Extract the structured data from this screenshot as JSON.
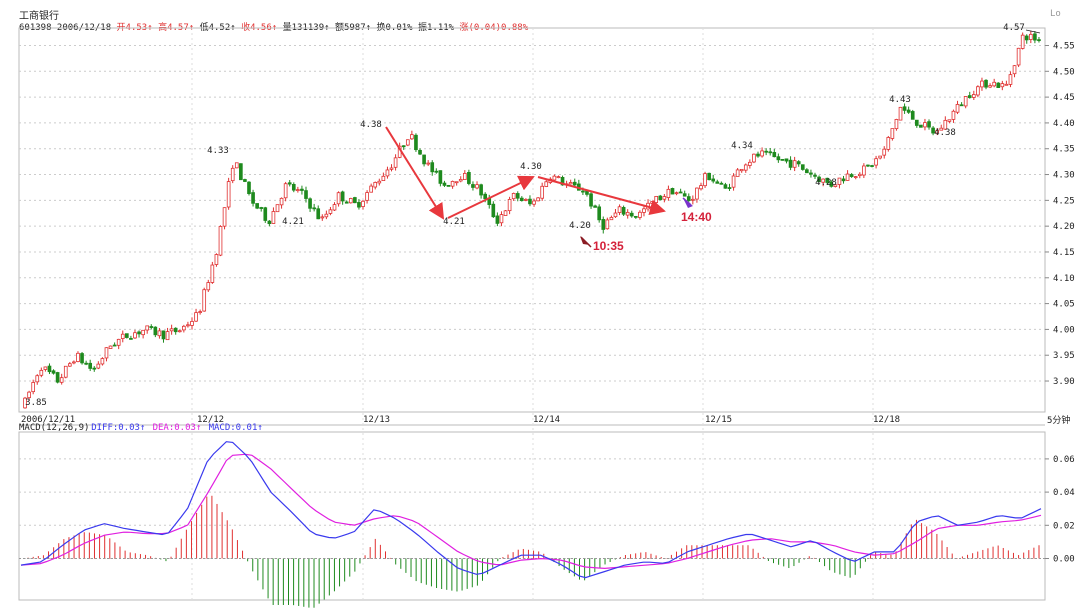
{
  "header": {
    "stock_name": "工商银行",
    "info_line": [
      {
        "text": "601398 2006/12/18 ",
        "color": "#222222"
      },
      {
        "text": "开4.53↑",
        "color": "#e03030"
      },
      {
        "text": "高4.57↑",
        "color": "#e03030"
      },
      {
        "text": "低4.52↑",
        "color": "#222222"
      },
      {
        "text": "收4.56↑",
        "color": "#e03030"
      },
      {
        "text": "量131139↑",
        "color": "#222222"
      },
      {
        "text": "额5987↑",
        "color": "#222222"
      },
      {
        "text": "换0.01%",
        "color": "#222222"
      },
      {
        "text": "振1.11%",
        "color": "#222222"
      },
      {
        "text": "涨(0.04)0.88%",
        "color": "#e03030"
      }
    ],
    "corner_label": "Lo"
  },
  "macd_header": [
    {
      "text": "MACD(12,26,9)",
      "color": "#222222"
    },
    {
      "text": " DIFF:0.03↑",
      "color": "#3a3aee"
    },
    {
      "text": " DEA:0.03↑",
      "color": "#e020e0"
    },
    {
      "text": " MACD:0.01↑",
      "color": "#3a3aee"
    }
  ],
  "timeframe_label": "5分钟",
  "chart_data": [
    {
      "type": "candlestick",
      "title": "工商银行 601398 5分钟",
      "ylim": [
        3.84,
        4.58
      ],
      "y_ticks": [
        "3.90",
        "3.95",
        "4.00",
        "4.05",
        "4.10",
        "4.15",
        "4.20",
        "4.25",
        "4.30",
        "4.35",
        "4.40",
        "4.45",
        "4.50",
        "4.55"
      ],
      "x_ticks": [
        "2006/12/11",
        "12/12",
        "12/13",
        "12/14",
        "12/15",
        "12/18"
      ],
      "colors": {
        "up": "#e03030",
        "down": "#1e8a1e"
      },
      "price_path": [
        3.85,
        3.93,
        3.9,
        3.95,
        3.92,
        3.97,
        3.99,
        4.0,
        3.99,
        4.0,
        4.03,
        4.15,
        4.33,
        4.25,
        4.21,
        4.28,
        4.26,
        4.21,
        4.26,
        4.24,
        4.28,
        4.32,
        4.38,
        4.32,
        4.28,
        4.3,
        4.27,
        4.21,
        4.26,
        4.24,
        4.3,
        4.28,
        4.27,
        4.2,
        4.23,
        4.22,
        4.25,
        4.27,
        4.25,
        4.3,
        4.27,
        4.32,
        4.34,
        4.33,
        4.32,
        4.3,
        4.28,
        4.3,
        4.31,
        4.34,
        4.43,
        4.4,
        4.38,
        4.42,
        4.46,
        4.48,
        4.47,
        4.57,
        4.56
      ],
      "price_labels": [
        "3.85",
        "4.33",
        "4.21",
        "4.38",
        "4.21",
        "4.30",
        "4.20",
        "4.34",
        "4.28",
        "4.43",
        "4.38",
        "4.57"
      ],
      "annotations": [
        "10:35",
        "14:40"
      ]
    },
    {
      "type": "line",
      "title": "MACD(12,26,9)",
      "ylim": [
        -0.025,
        0.075
      ],
      "y_ticks": [
        "0.00",
        "0.02",
        "0.04",
        "0.06"
      ],
      "series": [
        {
          "name": "DIFF",
          "color": "#3a3aee",
          "values": [
            -0.004,
            -0.002,
            0.008,
            0.017,
            0.021,
            0.018,
            0.016,
            0.014,
            0.03,
            0.06,
            0.072,
            0.06,
            0.04,
            0.028,
            0.015,
            0.012,
            0.016,
            0.03,
            0.024,
            0.015,
            0.004,
            -0.006,
            -0.01,
            -0.004,
            0.002,
            0.002,
            -0.004,
            -0.012,
            -0.008,
            -0.004,
            -0.002,
            -0.003,
            0.004,
            0.008,
            0.012,
            0.015,
            0.011,
            0.007,
            0.011,
            0.004,
            -0.002,
            0.004,
            0.004,
            0.022,
            0.026,
            0.02,
            0.022,
            0.026,
            0.024,
            0.03
          ]
        },
        {
          "name": "DEA",
          "color": "#e020e0",
          "values": [
            -0.004,
            -0.003,
            0.002,
            0.009,
            0.014,
            0.016,
            0.015,
            0.015,
            0.02,
            0.04,
            0.062,
            0.063,
            0.054,
            0.042,
            0.03,
            0.022,
            0.02,
            0.024,
            0.026,
            0.022,
            0.013,
            0.004,
            -0.002,
            -0.004,
            -0.001,
            0.0,
            -0.001,
            -0.005,
            -0.006,
            -0.005,
            -0.004,
            -0.003,
            0.0,
            0.004,
            0.008,
            0.011,
            0.012,
            0.01,
            0.01,
            0.008,
            0.004,
            0.002,
            0.003,
            0.01,
            0.018,
            0.02,
            0.02,
            0.022,
            0.023,
            0.026
          ]
        }
      ]
    }
  ]
}
